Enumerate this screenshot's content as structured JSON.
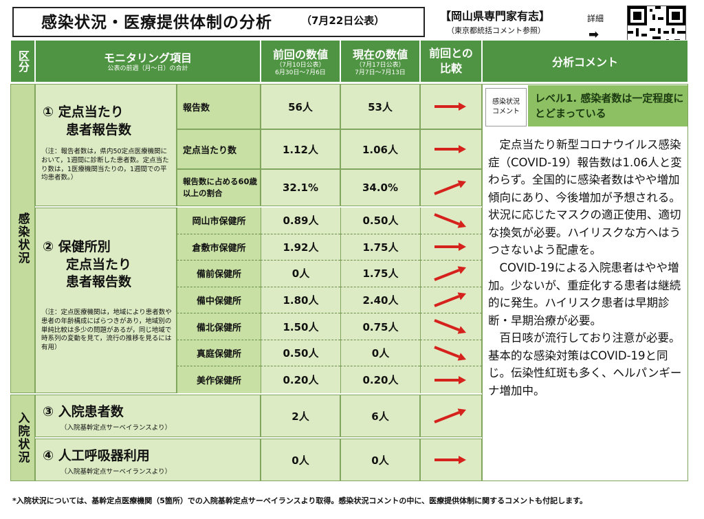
{
  "header": {
    "title": "感染状況・医療提供体制の分析",
    "date": "（7月22日公表）",
    "org": "【岡山県専門家有志】",
    "org_sub": "（東京都統括コメント参照）",
    "detail": "詳細",
    "detail_arrow": "➡"
  },
  "columns": {
    "category": "区分",
    "item": "モニタリング項目",
    "item_sub": "公表の前週（月～日）の合計",
    "prev": "前回の数値",
    "prev_sub1": "（7月10日公表）",
    "prev_sub2": "6月30日～7月6日",
    "curr": "現在の数値",
    "curr_sub1": "（7月17日公表）",
    "curr_sub2": "7月7日～7月13日",
    "compare": "前回との比較",
    "comment": "分析コメント"
  },
  "categories": {
    "infection": "感染状況",
    "hospital": "入院状況"
  },
  "item1": {
    "title1": "① 定点当たり",
    "title2": "患者報告数",
    "note": "（注：報告者数は，県内50定点医療機関において，1週間に診断した患者数。定点当たり数は，1医療機関当たりの，1週間での平均患者数。）",
    "rows": [
      {
        "label": "報告数",
        "prev": "56人",
        "curr": "53人",
        "trend": "flat"
      },
      {
        "label": "定点当たり数",
        "prev": "1.12人",
        "curr": "1.06人",
        "trend": "flat"
      },
      {
        "label": "報告数に占める60歳以上の割合",
        "prev": "32.1%",
        "curr": "34.0%",
        "trend": "up"
      }
    ]
  },
  "item2": {
    "title1": "② 保健所別",
    "title2": "定点当たり",
    "title3": "患者報告数",
    "note": "（注：定点医療機関は，地域により患者数や患者の年齢構成にばらつきがあり，地域別の単純比較は多少の問題があるが，同じ地域で時系列の変動を見て，流行の推移を見るには有用）",
    "rows": [
      {
        "label": "岡山市保健所",
        "prev": "0.89人",
        "curr": "0.50人",
        "trend": "down"
      },
      {
        "label": "倉敷市保健所",
        "prev": "1.92人",
        "curr": "1.75人",
        "trend": "flat"
      },
      {
        "label": "備前保健所",
        "prev": "0人",
        "curr": "1.75人",
        "trend": "up"
      },
      {
        "label": "備中保健所",
        "prev": "1.80人",
        "curr": "2.40人",
        "trend": "up"
      },
      {
        "label": "備北保健所",
        "prev": "1.50人",
        "curr": "0.75人",
        "trend": "down"
      },
      {
        "label": "真庭保健所",
        "prev": "0.50人",
        "curr": "0人",
        "trend": "down"
      },
      {
        "label": "美作保健所",
        "prev": "0.20人",
        "curr": "0.20人",
        "trend": "flat"
      }
    ]
  },
  "item3": {
    "title": "③ 入院患者数",
    "note": "（入院基幹定点サーベイランスより）",
    "prev": "2人",
    "curr": "6人",
    "trend": "up"
  },
  "item4": {
    "title": "④ 人工呼吸器利用",
    "note": "（入院基幹定点サーベイランスより）",
    "prev": "0人",
    "curr": "0人",
    "trend": "flat"
  },
  "comment": {
    "tag1": "感染状況",
    "tag2": "コメント",
    "level": "レベル1. 感染者数は一定程度にとどまっている",
    "body": "　定点当たり新型コロナウイルス感染症（COVID-19）報告数は1.06人と変わらず。全国的に感染者数はやや増加傾向にあり、今後増加が予想される。状況に応じたマスクの適正使用、適切な換気が必要。ハイリスクな方へはうつさないよう配慮を。\n　COVID-19による入院患者はやや増加。少ないが、重症化する患者は継続的に発生。ハイリスク患者は早期診断・早期治療が必要。\n　百日咳が流行しており注意が必要。基本的な感染対策はCOVID-19と同じ。伝染性紅斑も多く、ヘルパンギーナ増加中。"
  },
  "footnote": "*入院状況については、基幹定点医療機関（5箇所）での入院基幹定点サーベイランスより取得。感染状況コメントの中に、医療提供体制に関するコメントも付記します。",
  "colors": {
    "header": "#4f9442",
    "arrow": "#d6221c",
    "light": "#dcebc3",
    "mid": "#c8e0a4"
  }
}
